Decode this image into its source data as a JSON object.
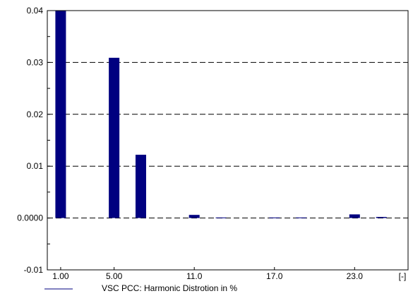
{
  "chart_data": {
    "type": "bar",
    "x": [
      1,
      5,
      7,
      11,
      13,
      17,
      19,
      23,
      25
    ],
    "series": [
      {
        "name": "VSC PCC: Harmonic Distrotion in %",
        "values": [
          0.04,
          0.0309,
          0.0122,
          0.0006,
          0.0001,
          0.0001,
          0.0001,
          0.0007,
          0.0002
        ],
        "color": "#000080"
      }
    ],
    "xlim": [
      0,
      27
    ],
    "ylim": [
      -0.01,
      0.04
    ],
    "x_tick_labels": [
      {
        "value": 1,
        "label": "1.00"
      },
      {
        "value": 5,
        "label": "5.00"
      },
      {
        "value": 11,
        "label": "11.0"
      },
      {
        "value": 17,
        "label": "17.0"
      },
      {
        "value": 23,
        "label": "23.0"
      }
    ],
    "x_unit_label": "[-]",
    "y_tick_labels": [
      {
        "value": 0.04,
        "label": "0.04"
      },
      {
        "value": 0.03,
        "label": "0.03"
      },
      {
        "value": 0.02,
        "label": "0.02"
      },
      {
        "value": 0.01,
        "label": "0.01"
      },
      {
        "value": 0.0,
        "label": "0.0000"
      },
      {
        "value": -0.01,
        "label": "-0.01"
      }
    ],
    "gridlines": [
      0.04,
      0.03,
      0.02,
      0.01,
      0.0
    ],
    "grid": true,
    "legend_position": "bottom-left",
    "title": "",
    "xlabel": "",
    "ylabel": ""
  }
}
